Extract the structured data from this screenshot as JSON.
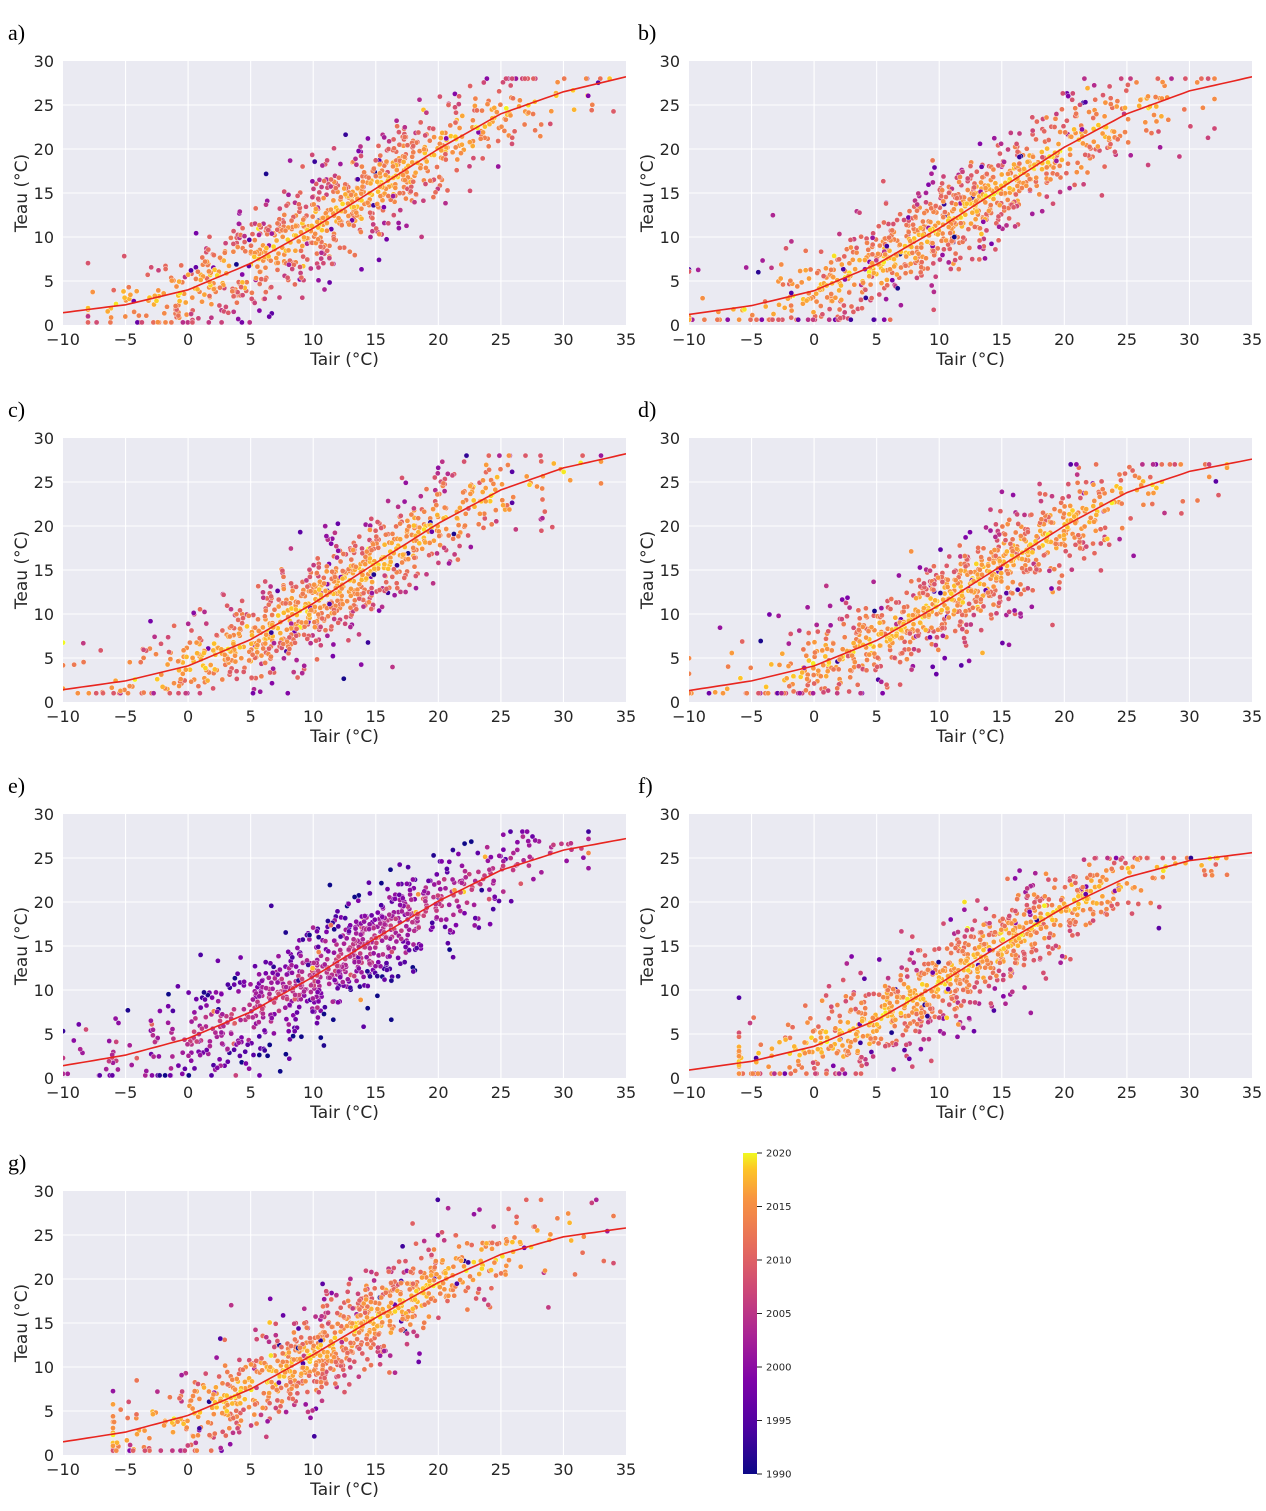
{
  "chart_data": [
    {
      "panel": "a)",
      "type": "scatter",
      "xlabel": "Tair (°C)",
      "ylabel": "Teau (°C)",
      "xlim": [
        -10,
        35
      ],
      "ylim": [
        0,
        30
      ],
      "xticks": [
        -10,
        -5,
        0,
        5,
        10,
        15,
        20,
        25,
        30,
        35
      ],
      "xtick_labels": [
        "−10",
        "−5",
        "0",
        "5",
        "10",
        "15",
        "20",
        "25",
        "30",
        "35"
      ],
      "yticks": [
        0,
        5,
        10,
        15,
        20,
        25,
        30
      ],
      "ytick_labels": [
        "0",
        "5",
        "10",
        "15",
        "20",
        "25",
        "30"
      ],
      "grid": true,
      "fit_curve": {
        "x": [
          -10,
          -5,
          0,
          5,
          10,
          15,
          20,
          25,
          30,
          35
        ],
        "y": [
          1.4,
          2.3,
          4.0,
          7.0,
          11.0,
          15.5,
          20.0,
          24.0,
          26.5,
          28.2
        ]
      },
      "point_cloud": {
        "x_min": -8,
        "x_max": 34,
        "y_min": 0.3,
        "y_max": 28,
        "dominant_year": 2018
      }
    },
    {
      "panel": "b)",
      "type": "scatter",
      "xlabel": "Tair (°C)",
      "ylabel": "Teau (°C)",
      "xlim": [
        -10,
        35
      ],
      "ylim": [
        0,
        30
      ],
      "xticks": [
        -10,
        -5,
        0,
        5,
        10,
        15,
        20,
        25,
        30,
        35
      ],
      "xtick_labels": [
        "−10",
        "−5",
        "0",
        "5",
        "10",
        "15",
        "20",
        "25",
        "30",
        "35"
      ],
      "yticks": [
        0,
        5,
        10,
        15,
        20,
        25,
        30
      ],
      "ytick_labels": [
        "0",
        "5",
        "10",
        "15",
        "20",
        "25",
        "30"
      ],
      "grid": true,
      "fit_curve": {
        "x": [
          -10,
          -5,
          0,
          5,
          10,
          15,
          20,
          25,
          30,
          35
        ],
        "y": [
          1.2,
          2.2,
          3.9,
          6.9,
          11.0,
          15.6,
          20.2,
          24.0,
          26.6,
          28.2
        ]
      },
      "point_cloud": {
        "x_min": -10,
        "x_max": 32,
        "y_min": 0.6,
        "y_max": 28,
        "dominant_year": 2018
      }
    },
    {
      "panel": "c)",
      "type": "scatter",
      "xlabel": "Tair (°C)",
      "ylabel": "Teau (°C)",
      "xlim": [
        -10,
        35
      ],
      "ylim": [
        0,
        30
      ],
      "xticks": [
        -10,
        -5,
        0,
        5,
        10,
        15,
        20,
        25,
        30,
        35
      ],
      "xtick_labels": [
        "−10",
        "−5",
        "0",
        "5",
        "10",
        "15",
        "20",
        "25",
        "30",
        "35"
      ],
      "yticks": [
        0,
        5,
        10,
        15,
        20,
        25,
        30
      ],
      "ytick_labels": [
        "0",
        "5",
        "10",
        "15",
        "20",
        "25",
        "30"
      ],
      "grid": true,
      "fit_curve": {
        "x": [
          -10,
          -5,
          0,
          5,
          10,
          15,
          20,
          25,
          30,
          35
        ],
        "y": [
          1.4,
          2.4,
          4.1,
          7.1,
          11.2,
          15.8,
          20.3,
          24.1,
          26.6,
          28.2
        ]
      },
      "point_cloud": {
        "x_min": -10,
        "x_max": 33,
        "y_min": 1,
        "y_max": 28,
        "dominant_year": 2018
      }
    },
    {
      "panel": "d)",
      "type": "scatter",
      "xlabel": "Tair (°C)",
      "ylabel": "Teau (°C)",
      "xlim": [
        -10,
        35
      ],
      "ylim": [
        0,
        30
      ],
      "xticks": [
        -10,
        -5,
        0,
        5,
        10,
        15,
        20,
        25,
        30,
        35
      ],
      "xtick_labels": [
        "−10",
        "−5",
        "0",
        "5",
        "10",
        "15",
        "20",
        "25",
        "30",
        "35"
      ],
      "yticks": [
        0,
        5,
        10,
        15,
        20,
        25,
        30
      ],
      "ytick_labels": [
        "0",
        "5",
        "10",
        "15",
        "20",
        "25",
        "30"
      ],
      "grid": true,
      "fit_curve": {
        "x": [
          -10,
          -5,
          0,
          5,
          10,
          15,
          20,
          25,
          30,
          35
        ],
        "y": [
          1.3,
          2.4,
          4.1,
          7.0,
          11.0,
          15.5,
          20.0,
          23.8,
          26.2,
          27.6
        ]
      },
      "point_cloud": {
        "x_min": -10,
        "x_max": 33,
        "y_min": 1,
        "y_max": 27,
        "dominant_year": 2018
      }
    },
    {
      "panel": "e)",
      "type": "scatter",
      "xlabel": "Tair (°C)",
      "ylabel": "Teau (°C)",
      "xlim": [
        -10,
        35
      ],
      "ylim": [
        0,
        30
      ],
      "xticks": [
        -10,
        -5,
        0,
        5,
        10,
        15,
        20,
        25,
        30,
        35
      ],
      "xtick_labels": [
        "−10",
        "−5",
        "0",
        "5",
        "10",
        "15",
        "20",
        "25",
        "30",
        "35"
      ],
      "yticks": [
        0,
        5,
        10,
        15,
        20,
        25,
        30
      ],
      "ytick_labels": [
        "0",
        "5",
        "10",
        "15",
        "20",
        "25",
        "30"
      ],
      "grid": true,
      "fit_curve": {
        "x": [
          -10,
          -5,
          0,
          5,
          10,
          15,
          20,
          25,
          30,
          35
        ],
        "y": [
          1.4,
          2.6,
          4.5,
          7.5,
          11.5,
          15.9,
          20.1,
          23.6,
          25.9,
          27.2
        ]
      },
      "point_cloud": {
        "x_min": -10,
        "x_max": 32,
        "y_min": 0.3,
        "y_max": 28,
        "dominant_year": 2006
      }
    },
    {
      "panel": "f)",
      "type": "scatter",
      "xlabel": "Tair (°C)",
      "ylabel": "Teau (°C)",
      "xlim": [
        -10,
        35
      ],
      "ylim": [
        0,
        30
      ],
      "xticks": [
        -10,
        -5,
        0,
        5,
        10,
        15,
        20,
        25,
        30,
        35
      ],
      "xtick_labels": [
        "−10",
        "−5",
        "0",
        "5",
        "10",
        "15",
        "20",
        "25",
        "30",
        "35"
      ],
      "yticks": [
        0,
        5,
        10,
        15,
        20,
        25,
        30
      ],
      "ytick_labels": [
        "0",
        "5",
        "10",
        "15",
        "20",
        "25",
        "30"
      ],
      "grid": true,
      "fit_curve": {
        "x": [
          -10,
          -5,
          0,
          5,
          10,
          15,
          20,
          25,
          30,
          35
        ],
        "y": [
          0.9,
          1.9,
          3.6,
          6.6,
          10.7,
          15.2,
          19.4,
          22.8,
          24.7,
          25.6
        ]
      },
      "point_cloud": {
        "x_min": -6,
        "x_max": 33,
        "y_min": 0.5,
        "y_max": 25,
        "dominant_year": 2018
      }
    },
    {
      "panel": "g)",
      "type": "scatter",
      "xlabel": "Tair (°C)",
      "ylabel": "Teau (°C)",
      "xlim": [
        -10,
        35
      ],
      "ylim": [
        0,
        30
      ],
      "xticks": [
        -10,
        -5,
        0,
        5,
        10,
        15,
        20,
        25,
        30,
        35
      ],
      "xtick_labels": [
        "−10",
        "−5",
        "0",
        "5",
        "10",
        "15",
        "20",
        "25",
        "30",
        "35"
      ],
      "yticks": [
        0,
        5,
        10,
        15,
        20,
        25,
        30
      ],
      "ytick_labels": [
        "0",
        "5",
        "10",
        "15",
        "20",
        "25",
        "30"
      ],
      "grid": true,
      "fit_curve": {
        "x": [
          -10,
          -5,
          0,
          5,
          10,
          15,
          20,
          25,
          30,
          35
        ],
        "y": [
          1.5,
          2.6,
          4.5,
          7.5,
          11.4,
          15.6,
          19.6,
          22.8,
          24.8,
          25.8
        ]
      },
      "point_cloud": {
        "x_min": -6,
        "x_max": 34,
        "y_min": 0.5,
        "y_max": 29,
        "dominant_year": 2018
      }
    }
  ],
  "colorbar": {
    "colormap": "plasma",
    "min": 1990,
    "max": 2020,
    "ticks": [
      1990,
      1995,
      2000,
      2005,
      2010,
      2015,
      2020
    ],
    "tick_labels": [
      "1990",
      "1995",
      "2000",
      "2005",
      "2010",
      "2015",
      "2020"
    ]
  },
  "colors": {
    "plot_background": "#EAEAF2",
    "grid": "#FFFFFF",
    "fit_line": "#E8251F"
  }
}
